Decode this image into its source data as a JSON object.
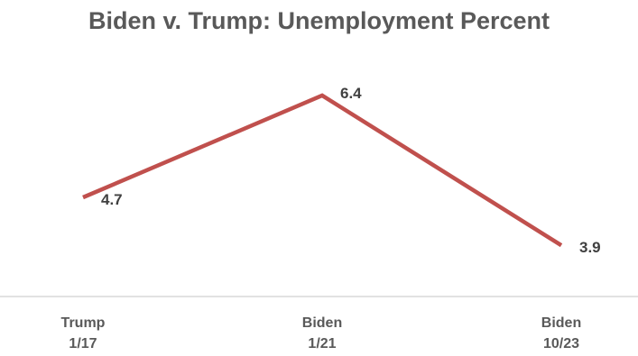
{
  "chart_data": {
    "type": "line",
    "title": "Biden v. Trump: Unemployment Percent",
    "categories": [
      [
        "Trump",
        "1/17"
      ],
      [
        "Biden",
        "1/21"
      ],
      [
        "Biden",
        "10/23"
      ]
    ],
    "series": [
      {
        "values": [
          4.7,
          6.4,
          3.9
        ],
        "color": "#c0504d"
      }
    ],
    "data_labels": [
      "4.7",
      "6.4",
      "3.9"
    ],
    "axis_color": "#d9d9d9",
    "grid": false,
    "legend": "none"
  }
}
